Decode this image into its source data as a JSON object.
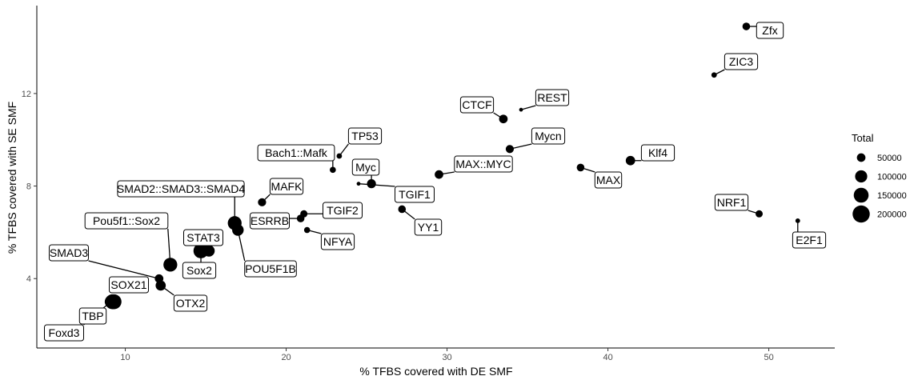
{
  "chart_data": {
    "type": "scatter",
    "xlabel": "% TFBS covered with DE SMF",
    "ylabel": "% TFBS covered with SE SMF",
    "x_ticks": [
      10,
      20,
      30,
      40,
      50
    ],
    "y_ticks": [
      4,
      8,
      12
    ],
    "xlim": [
      4.5,
      54.1
    ],
    "ylim": [
      1.0,
      15.8
    ],
    "grid": false,
    "legend": {
      "title": "Total",
      "placement": "right",
      "entries": [
        {
          "label": "50000",
          "value": 50000
        },
        {
          "label": "100000",
          "value": 100000
        },
        {
          "label": "150000",
          "value": 150000
        },
        {
          "label": "200000",
          "value": 200000
        }
      ]
    },
    "points": [
      {
        "label": "Zfx",
        "x": 48.6,
        "y": 14.9,
        "total": 40000
      },
      {
        "label": "ZIC3",
        "x": 46.6,
        "y": 12.8,
        "total": 20000
      },
      {
        "label": "REST",
        "x": 34.6,
        "y": 11.3,
        "total": 10000
      },
      {
        "label": "CTCF",
        "x": 33.5,
        "y": 10.9,
        "total": 50000
      },
      {
        "label": "Mycn",
        "x": 33.9,
        "y": 9.6,
        "total": 45000
      },
      {
        "label": "Klf4",
        "x": 41.4,
        "y": 9.1,
        "total": 60000
      },
      {
        "label": "MAX",
        "x": 38.3,
        "y": 8.8,
        "total": 40000
      },
      {
        "label": "MAX::MYC",
        "x": 29.5,
        "y": 8.5,
        "total": 50000
      },
      {
        "label": "TP53",
        "x": 23.3,
        "y": 9.3,
        "total": 20000
      },
      {
        "label": "Bach1::Mafk",
        "x": 22.9,
        "y": 8.7,
        "total": 25000
      },
      {
        "label": "Myc",
        "x": 25.3,
        "y": 8.1,
        "total": 55000
      },
      {
        "label": "TGIF1",
        "x": 24.5,
        "y": 8.1,
        "total": 10000
      },
      {
        "label": "YY1",
        "x": 27.2,
        "y": 7.0,
        "total": 40000
      },
      {
        "label": "NRF1",
        "x": 49.4,
        "y": 6.8,
        "total": 35000
      },
      {
        "label": "E2F1",
        "x": 51.8,
        "y": 6.5,
        "total": 15000
      },
      {
        "label": "MAFK",
        "x": 18.5,
        "y": 7.3,
        "total": 45000
      },
      {
        "label": "TGIF2",
        "x": 21.1,
        "y": 6.8,
        "total": 35000
      },
      {
        "label": "ESRRB",
        "x": 20.9,
        "y": 6.6,
        "total": 40000
      },
      {
        "label": "NFYA",
        "x": 21.3,
        "y": 6.1,
        "total": 25000
      },
      {
        "label": "SMAD2::SMAD3::SMAD4",
        "x": 16.8,
        "y": 6.4,
        "total": 130000
      },
      {
        "label": "POU5F1B",
        "x": 17.0,
        "y": 6.1,
        "total": 90000
      },
      {
        "label": "Pou5f1::Sox2",
        "x": 12.8,
        "y": 4.6,
        "total": 130000
      },
      {
        "label": "STAT3",
        "x": 15.2,
        "y": 5.2,
        "total": 90000
      },
      {
        "label": "Sox2",
        "x": 14.7,
        "y": 5.2,
        "total": 150000
      },
      {
        "label": "SMAD3",
        "x": 12.1,
        "y": 4.0,
        "total": 50000
      },
      {
        "label": "OTX2",
        "x": 12.2,
        "y": 3.7,
        "total": 70000
      },
      {
        "label": "SOX21",
        "x": 9.3,
        "y": 3.0,
        "total": 150000
      },
      {
        "label": "TBP",
        "x": 9.2,
        "y": 3.0,
        "total": 150000
      },
      {
        "label": "Foxd3",
        "x": 9.1,
        "y": 3.0,
        "total": 100000
      }
    ]
  }
}
